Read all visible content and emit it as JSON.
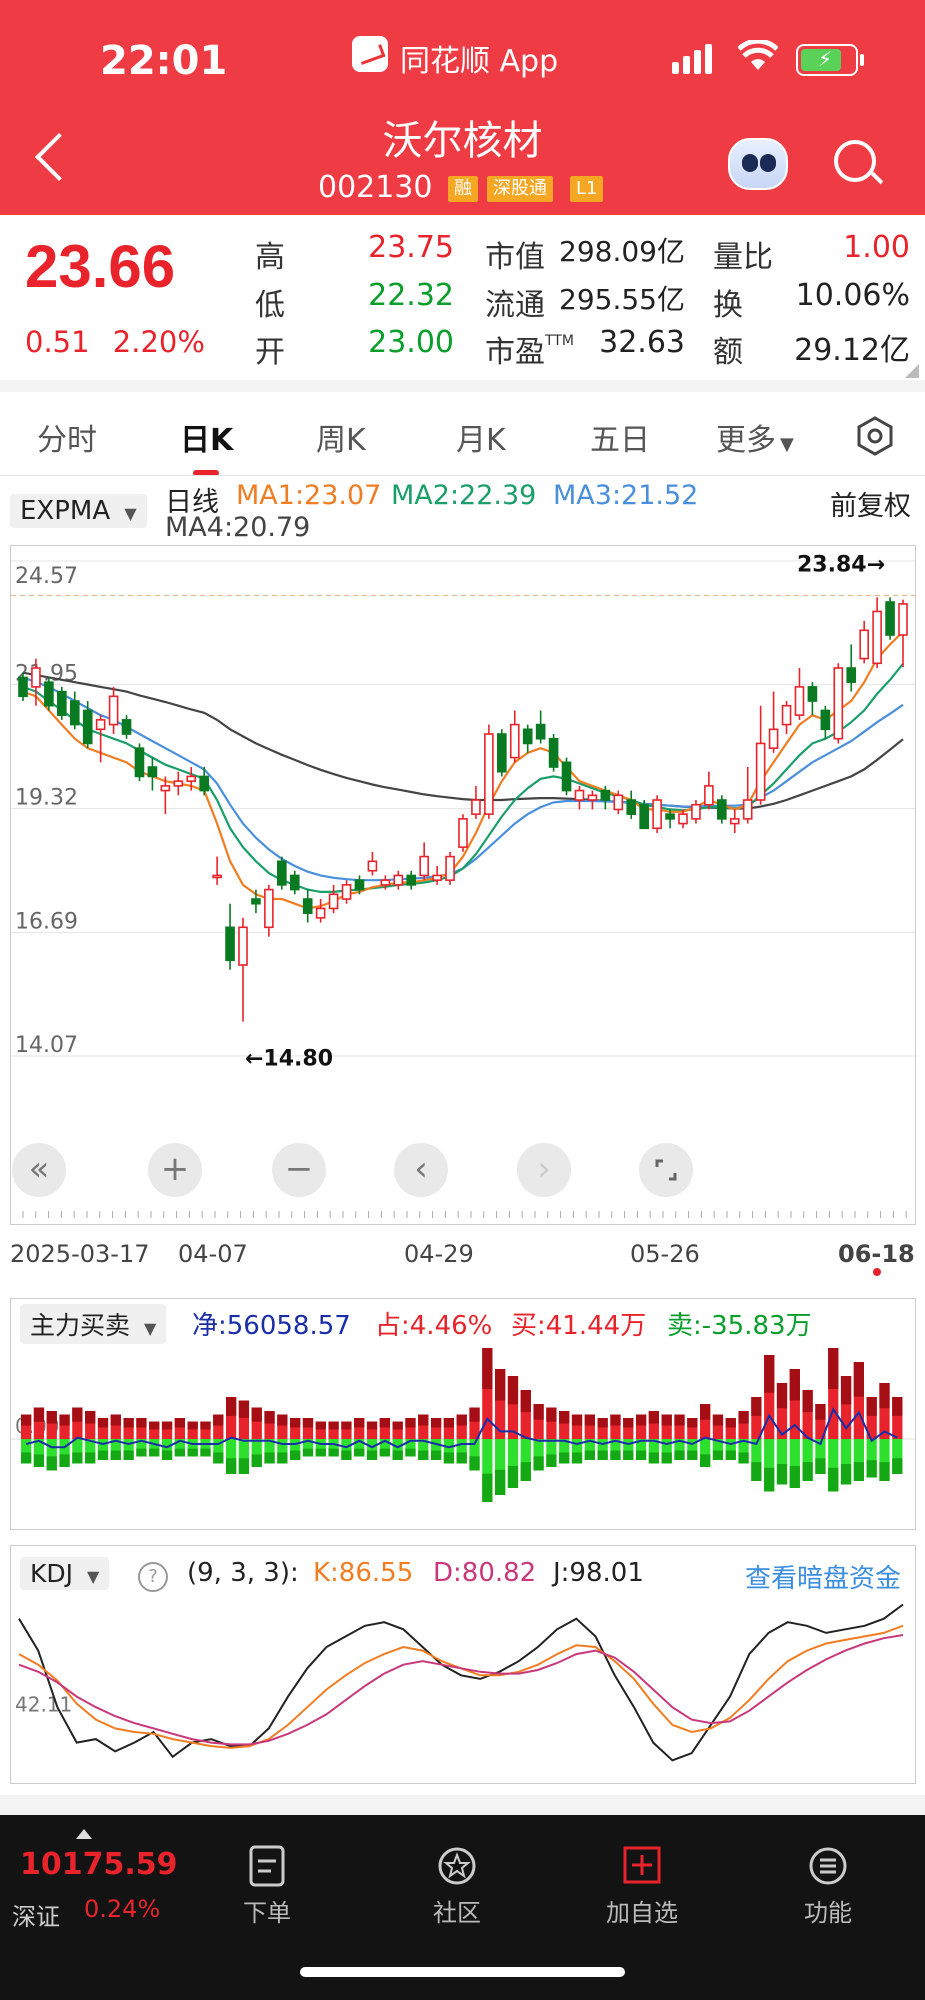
{
  "status_bar": {
    "time": "22:01",
    "app_name": "同花顺 App"
  },
  "header": {
    "stock_name": "沃尔核材",
    "stock_code": "002130",
    "tags": [
      "融",
      "深股通",
      "L1"
    ]
  },
  "quote": {
    "price": "23.66",
    "change": "0.51",
    "change_pct": "2.20%",
    "high_label": "高",
    "high": "23.75",
    "low_label": "低",
    "low": "22.32",
    "open_label": "开",
    "open": "23.00",
    "mktcap_label": "市值",
    "mktcap": "298.09亿",
    "float_label": "流通",
    "float": "295.55亿",
    "pe_label": "市盈",
    "pe_sup": "TTM",
    "pe": "32.63",
    "volratio_label": "量比",
    "volratio": "1.00",
    "turnover_label": "换",
    "turnover": "10.06%",
    "amount_label": "额",
    "amount": "29.12亿"
  },
  "tabs": [
    "分时",
    "日K",
    "周K",
    "月K",
    "五日",
    "更多"
  ],
  "active_tab": "日K",
  "kline": {
    "indicator": "EXPMA",
    "period": "日线",
    "ma1": "MA1:23.07",
    "ma2": "MA2:22.39",
    "ma3": "MA3:21.52",
    "ma4": "MA4:20.79",
    "adjust": "前复权",
    "y_ticks": [
      "24.57",
      "21.95",
      "19.32",
      "16.69",
      "14.07"
    ],
    "high_marker": "23.84→",
    "low_marker": "←14.80",
    "dates": [
      "2025-03-17",
      "04-07",
      "04-29",
      "05-26",
      "06-18"
    ],
    "colors": {
      "up": "#e8232b",
      "down": "#0a7a22",
      "ma1": "#f07d22",
      "ma2": "#1a9e6a",
      "ma3": "#4a8fdc",
      "ma4": "#444444"
    }
  },
  "chart_data": {
    "type": "candlestick",
    "ylim": [
      14.07,
      24.57
    ],
    "candles": [
      {
        "o": 22.1,
        "c": 21.7,
        "h": 22.2,
        "l": 21.6
      },
      {
        "o": 21.9,
        "c": 22.3,
        "h": 22.5,
        "l": 21.5
      },
      {
        "o": 22.0,
        "c": 21.5,
        "h": 22.1,
        "l": 21.4
      },
      {
        "o": 21.8,
        "c": 21.3,
        "h": 21.9,
        "l": 21.2
      },
      {
        "o": 21.6,
        "c": 21.1,
        "h": 21.8,
        "l": 21.0
      },
      {
        "o": 21.4,
        "c": 20.7,
        "h": 21.6,
        "l": 20.6
      },
      {
        "o": 21.0,
        "c": 21.2,
        "h": 21.3,
        "l": 20.3
      },
      {
        "o": 21.1,
        "c": 21.7,
        "h": 21.9,
        "l": 20.9
      },
      {
        "o": 21.2,
        "c": 20.9,
        "h": 21.3,
        "l": 20.8
      },
      {
        "o": 20.6,
        "c": 20.0,
        "h": 20.7,
        "l": 19.9
      },
      {
        "o": 20.2,
        "c": 20.0,
        "h": 20.4,
        "l": 19.7
      },
      {
        "o": 19.7,
        "c": 19.8,
        "h": 20.0,
        "l": 19.2
      },
      {
        "o": 19.8,
        "c": 19.9,
        "h": 20.1,
        "l": 19.6
      },
      {
        "o": 19.9,
        "c": 20.0,
        "h": 20.2,
        "l": 19.7
      },
      {
        "o": 20.0,
        "c": 19.7,
        "h": 20.2,
        "l": 19.6
      },
      {
        "o": 17.9,
        "c": 17.9,
        "h": 18.3,
        "l": 17.7
      },
      {
        "o": 16.8,
        "c": 16.1,
        "h": 17.3,
        "l": 15.9
      },
      {
        "o": 16.0,
        "c": 16.8,
        "h": 17.0,
        "l": 14.8
      },
      {
        "o": 17.4,
        "c": 17.3,
        "h": 17.6,
        "l": 17.1
      },
      {
        "o": 16.8,
        "c": 17.6,
        "h": 17.7,
        "l": 16.6
      },
      {
        "o": 18.2,
        "c": 17.7,
        "h": 18.3,
        "l": 17.6
      },
      {
        "o": 17.9,
        "c": 17.6,
        "h": 18.0,
        "l": 17.5
      },
      {
        "o": 17.4,
        "c": 17.1,
        "h": 17.6,
        "l": 16.9
      },
      {
        "o": 17.0,
        "c": 17.2,
        "h": 17.4,
        "l": 16.9
      },
      {
        "o": 17.2,
        "c": 17.5,
        "h": 17.7,
        "l": 17.1
      },
      {
        "o": 17.4,
        "c": 17.7,
        "h": 17.8,
        "l": 17.3
      },
      {
        "o": 17.8,
        "c": 17.6,
        "h": 17.9,
        "l": 17.5
      },
      {
        "o": 18.0,
        "c": 18.2,
        "h": 18.4,
        "l": 17.9
      },
      {
        "o": 17.7,
        "c": 17.8,
        "h": 17.9,
        "l": 17.6
      },
      {
        "o": 17.7,
        "c": 17.9,
        "h": 18.0,
        "l": 17.6
      },
      {
        "o": 17.9,
        "c": 17.7,
        "h": 18.0,
        "l": 17.6
      },
      {
        "o": 17.9,
        "c": 18.3,
        "h": 18.6,
        "l": 17.8
      },
      {
        "o": 17.8,
        "c": 17.9,
        "h": 18.1,
        "l": 17.7
      },
      {
        "o": 17.8,
        "c": 18.3,
        "h": 18.4,
        "l": 17.7
      },
      {
        "o": 18.5,
        "c": 19.1,
        "h": 19.2,
        "l": 18.4
      },
      {
        "o": 19.2,
        "c": 19.5,
        "h": 19.8,
        "l": 19.1
      },
      {
        "o": 19.2,
        "c": 20.9,
        "h": 21.1,
        "l": 19.1
      },
      {
        "o": 20.9,
        "c": 20.1,
        "h": 21.0,
        "l": 20.0
      },
      {
        "o": 20.4,
        "c": 21.1,
        "h": 21.4,
        "l": 20.3
      },
      {
        "o": 21.0,
        "c": 20.7,
        "h": 21.1,
        "l": 20.5
      },
      {
        "o": 21.1,
        "c": 20.8,
        "h": 21.4,
        "l": 20.7
      },
      {
        "o": 20.8,
        "c": 20.2,
        "h": 20.9,
        "l": 20.1
      },
      {
        "o": 20.3,
        "c": 19.7,
        "h": 20.4,
        "l": 19.6
      },
      {
        "o": 19.5,
        "c": 19.7,
        "h": 19.8,
        "l": 19.3
      },
      {
        "o": 19.5,
        "c": 19.6,
        "h": 19.7,
        "l": 19.3
      },
      {
        "o": 19.7,
        "c": 19.5,
        "h": 19.8,
        "l": 19.3
      },
      {
        "o": 19.3,
        "c": 19.6,
        "h": 19.7,
        "l": 19.2
      },
      {
        "o": 19.5,
        "c": 19.2,
        "h": 19.7,
        "l": 19.1
      },
      {
        "o": 19.4,
        "c": 18.9,
        "h": 19.5,
        "l": 18.9
      },
      {
        "o": 18.9,
        "c": 19.5,
        "h": 19.6,
        "l": 18.8
      },
      {
        "o": 19.2,
        "c": 19.1,
        "h": 19.3,
        "l": 18.9
      },
      {
        "o": 19.0,
        "c": 19.2,
        "h": 19.3,
        "l": 18.9
      },
      {
        "o": 19.1,
        "c": 19.4,
        "h": 19.5,
        "l": 19.0
      },
      {
        "o": 19.4,
        "c": 19.8,
        "h": 20.1,
        "l": 19.3
      },
      {
        "o": 19.5,
        "c": 19.1,
        "h": 19.6,
        "l": 19.0
      },
      {
        "o": 19.0,
        "c": 19.1,
        "h": 19.3,
        "l": 18.8
      },
      {
        "o": 19.1,
        "c": 19.5,
        "h": 20.2,
        "l": 19.0
      },
      {
        "o": 19.5,
        "c": 20.7,
        "h": 21.5,
        "l": 19.4
      },
      {
        "o": 20.6,
        "c": 21.0,
        "h": 21.8,
        "l": 20.5
      },
      {
        "o": 21.1,
        "c": 21.5,
        "h": 21.6,
        "l": 20.9
      },
      {
        "o": 21.3,
        "c": 21.9,
        "h": 22.3,
        "l": 21.2
      },
      {
        "o": 21.9,
        "c": 21.6,
        "h": 22.0,
        "l": 21.3
      },
      {
        "o": 21.4,
        "c": 21.0,
        "h": 21.5,
        "l": 20.8
      },
      {
        "o": 20.8,
        "c": 22.3,
        "h": 22.4,
        "l": 20.7
      },
      {
        "o": 22.3,
        "c": 22.0,
        "h": 22.8,
        "l": 21.8
      },
      {
        "o": 22.5,
        "c": 23.1,
        "h": 23.3,
        "l": 22.4
      },
      {
        "o": 22.4,
        "c": 23.5,
        "h": 23.8,
        "l": 22.3
      },
      {
        "o": 23.7,
        "c": 23.0,
        "h": 23.8,
        "l": 22.9
      },
      {
        "o": 23.0,
        "c": 23.66,
        "h": 23.75,
        "l": 22.32
      }
    ],
    "ma1": [
      21.8,
      21.7,
      21.4,
      21.1,
      20.8,
      20.6,
      20.5,
      20.4,
      20.3,
      20.1,
      20.0,
      19.9,
      19.85,
      19.8,
      19.7,
      19.0,
      18.2,
      17.7,
      17.5,
      17.4,
      17.4,
      17.3,
      17.2,
      17.25,
      17.35,
      17.5,
      17.55,
      17.65,
      17.7,
      17.75,
      17.75,
      17.8,
      17.85,
      17.95,
      18.3,
      18.8,
      19.4,
      19.9,
      20.3,
      20.5,
      20.6,
      20.5,
      20.2,
      19.9,
      19.8,
      19.7,
      19.6,
      19.5,
      19.3,
      19.3,
      19.25,
      19.25,
      19.35,
      19.5,
      19.4,
      19.3,
      19.4,
      19.9,
      20.3,
      20.7,
      21.1,
      21.3,
      21.2,
      21.4,
      21.6,
      22.0,
      22.5,
      22.8,
      23.07
    ],
    "ma2": [
      21.9,
      21.8,
      21.6,
      21.4,
      21.2,
      21.0,
      20.9,
      20.8,
      20.7,
      20.55,
      20.4,
      20.25,
      20.15,
      20.05,
      19.95,
      19.5,
      18.9,
      18.5,
      18.2,
      17.95,
      17.8,
      17.7,
      17.6,
      17.55,
      17.55,
      17.58,
      17.6,
      17.63,
      17.66,
      17.7,
      17.72,
      17.75,
      17.8,
      17.88,
      18.05,
      18.35,
      18.75,
      19.15,
      19.5,
      19.75,
      19.95,
      20.0,
      19.95,
      19.85,
      19.75,
      19.65,
      19.58,
      19.5,
      19.4,
      19.35,
      19.3,
      19.28,
      19.3,
      19.35,
      19.35,
      19.32,
      19.36,
      19.6,
      19.85,
      20.15,
      20.45,
      20.7,
      20.8,
      20.95,
      21.15,
      21.4,
      21.75,
      22.05,
      22.39
    ],
    "ma3": [
      22.1,
      22.0,
      21.9,
      21.75,
      21.6,
      21.45,
      21.3,
      21.2,
      21.05,
      20.9,
      20.75,
      20.6,
      20.45,
      20.3,
      20.15,
      19.85,
      19.4,
      19.0,
      18.7,
      18.45,
      18.25,
      18.1,
      17.98,
      17.9,
      17.85,
      17.82,
      17.8,
      17.8,
      17.8,
      17.82,
      17.83,
      17.85,
      17.88,
      17.93,
      18.05,
      18.25,
      18.5,
      18.75,
      19.0,
      19.2,
      19.35,
      19.45,
      19.48,
      19.48,
      19.48,
      19.47,
      19.46,
      19.45,
      19.42,
      19.4,
      19.38,
      19.36,
      19.36,
      19.38,
      19.38,
      19.38,
      19.4,
      19.55,
      19.7,
      19.9,
      20.1,
      20.3,
      20.45,
      20.6,
      20.75,
      20.95,
      21.15,
      21.33,
      21.52
    ],
    "ma4": [
      22.2,
      22.15,
      22.1,
      22.05,
      22.0,
      21.95,
      21.9,
      21.85,
      21.8,
      21.72,
      21.65,
      21.58,
      21.5,
      21.42,
      21.35,
      21.2,
      21.0,
      20.85,
      20.7,
      20.58,
      20.46,
      20.35,
      20.24,
      20.14,
      20.05,
      19.97,
      19.9,
      19.83,
      19.77,
      19.72,
      19.67,
      19.62,
      19.58,
      19.55,
      19.52,
      19.5,
      19.5,
      19.5,
      19.52,
      19.53,
      19.54,
      19.54,
      19.53,
      19.52,
      19.5,
      19.48,
      19.46,
      19.44,
      19.42,
      19.4,
      19.38,
      19.36,
      19.35,
      19.34,
      19.33,
      19.32,
      19.32,
      19.36,
      19.42,
      19.5,
      19.6,
      19.7,
      19.8,
      19.9,
      20.0,
      20.15,
      20.35,
      20.57,
      20.79
    ]
  },
  "controls": [
    "«",
    "+",
    "−",
    "‹",
    "›"
  ],
  "flow": {
    "dropdown": "主力买卖",
    "net": "净:56058.57",
    "share": "占:4.46%",
    "buy": "买:41.44万",
    "sell": "卖:-35.83万",
    "y_label": "0.00",
    "buy_values": [
      0.35,
      0.45,
      0.4,
      0.35,
      0.45,
      0.4,
      0.3,
      0.35,
      0.3,
      0.3,
      0.25,
      0.25,
      0.3,
      0.25,
      0.25,
      0.35,
      0.6,
      0.55,
      0.45,
      0.4,
      0.35,
      0.3,
      0.3,
      0.25,
      0.25,
      0.25,
      0.3,
      0.25,
      0.3,
      0.25,
      0.3,
      0.35,
      0.3,
      0.3,
      0.35,
      0.45,
      1.3,
      1.0,
      0.9,
      0.7,
      0.5,
      0.45,
      0.4,
      0.35,
      0.35,
      0.3,
      0.35,
      0.3,
      0.35,
      0.4,
      0.35,
      0.35,
      0.3,
      0.5,
      0.35,
      0.3,
      0.4,
      0.6,
      1.2,
      0.8,
      1.0,
      0.7,
      0.5,
      1.3,
      0.9,
      1.1,
      0.6,
      0.8,
      0.6
    ],
    "sell_values": [
      0.35,
      0.4,
      0.45,
      0.4,
      0.35,
      0.35,
      0.3,
      0.3,
      0.3,
      0.25,
      0.25,
      0.3,
      0.25,
      0.25,
      0.25,
      0.35,
      0.5,
      0.5,
      0.4,
      0.35,
      0.35,
      0.3,
      0.25,
      0.25,
      0.25,
      0.3,
      0.25,
      0.3,
      0.25,
      0.3,
      0.25,
      0.3,
      0.3,
      0.35,
      0.35,
      0.45,
      0.9,
      0.8,
      0.7,
      0.6,
      0.45,
      0.4,
      0.35,
      0.35,
      0.3,
      0.3,
      0.3,
      0.3,
      0.3,
      0.35,
      0.35,
      0.3,
      0.3,
      0.4,
      0.3,
      0.3,
      0.35,
      0.6,
      0.75,
      0.65,
      0.7,
      0.6,
      0.5,
      0.75,
      0.65,
      0.6,
      0.55,
      0.6,
      0.5
    ]
  },
  "kdj": {
    "dropdown": "KDJ",
    "params": "(9, 3, 3):",
    "k": "K:86.55",
    "d": "D:80.82",
    "j": "J:98.01",
    "dark_pool_link": "查看暗盘资金",
    "y_label": "42.11",
    "k_values": [
      70,
      64,
      55,
      42,
      33,
      28,
      26,
      25,
      22,
      20,
      18,
      17,
      18,
      22,
      30,
      40,
      50,
      58,
      65,
      70,
      74,
      72,
      66,
      62,
      58,
      58,
      60,
      64,
      70,
      75,
      74,
      66,
      56,
      42,
      30,
      26,
      28,
      34,
      44,
      56,
      66,
      72,
      76,
      78,
      80,
      82,
      86
    ],
    "d_values": [
      64,
      60,
      54,
      46,
      40,
      35,
      31,
      28,
      25,
      22,
      20,
      19,
      19,
      21,
      25,
      30,
      36,
      44,
      52,
      59,
      64,
      66,
      64,
      62,
      60,
      59,
      59,
      61,
      65,
      70,
      72,
      68,
      60,
      50,
      40,
      33,
      31,
      32,
      38,
      46,
      54,
      61,
      67,
      72,
      76,
      79,
      80.8
    ],
    "j_values": [
      90,
      72,
      40,
      20,
      22,
      15,
      20,
      26,
      12,
      20,
      22,
      18,
      18,
      28,
      46,
      62,
      74,
      80,
      86,
      88,
      84,
      74,
      64,
      58,
      56,
      60,
      66,
      74,
      84,
      90,
      80,
      58,
      40,
      20,
      10,
      14,
      30,
      46,
      70,
      82,
      88,
      86,
      82,
      84,
      86,
      90,
      98
    ]
  },
  "bottom_bar": {
    "index_value": "10175.59",
    "index_name": "深证",
    "index_pct": "0.24%",
    "nav": [
      "下单",
      "社区",
      "加自选",
      "功能"
    ]
  }
}
